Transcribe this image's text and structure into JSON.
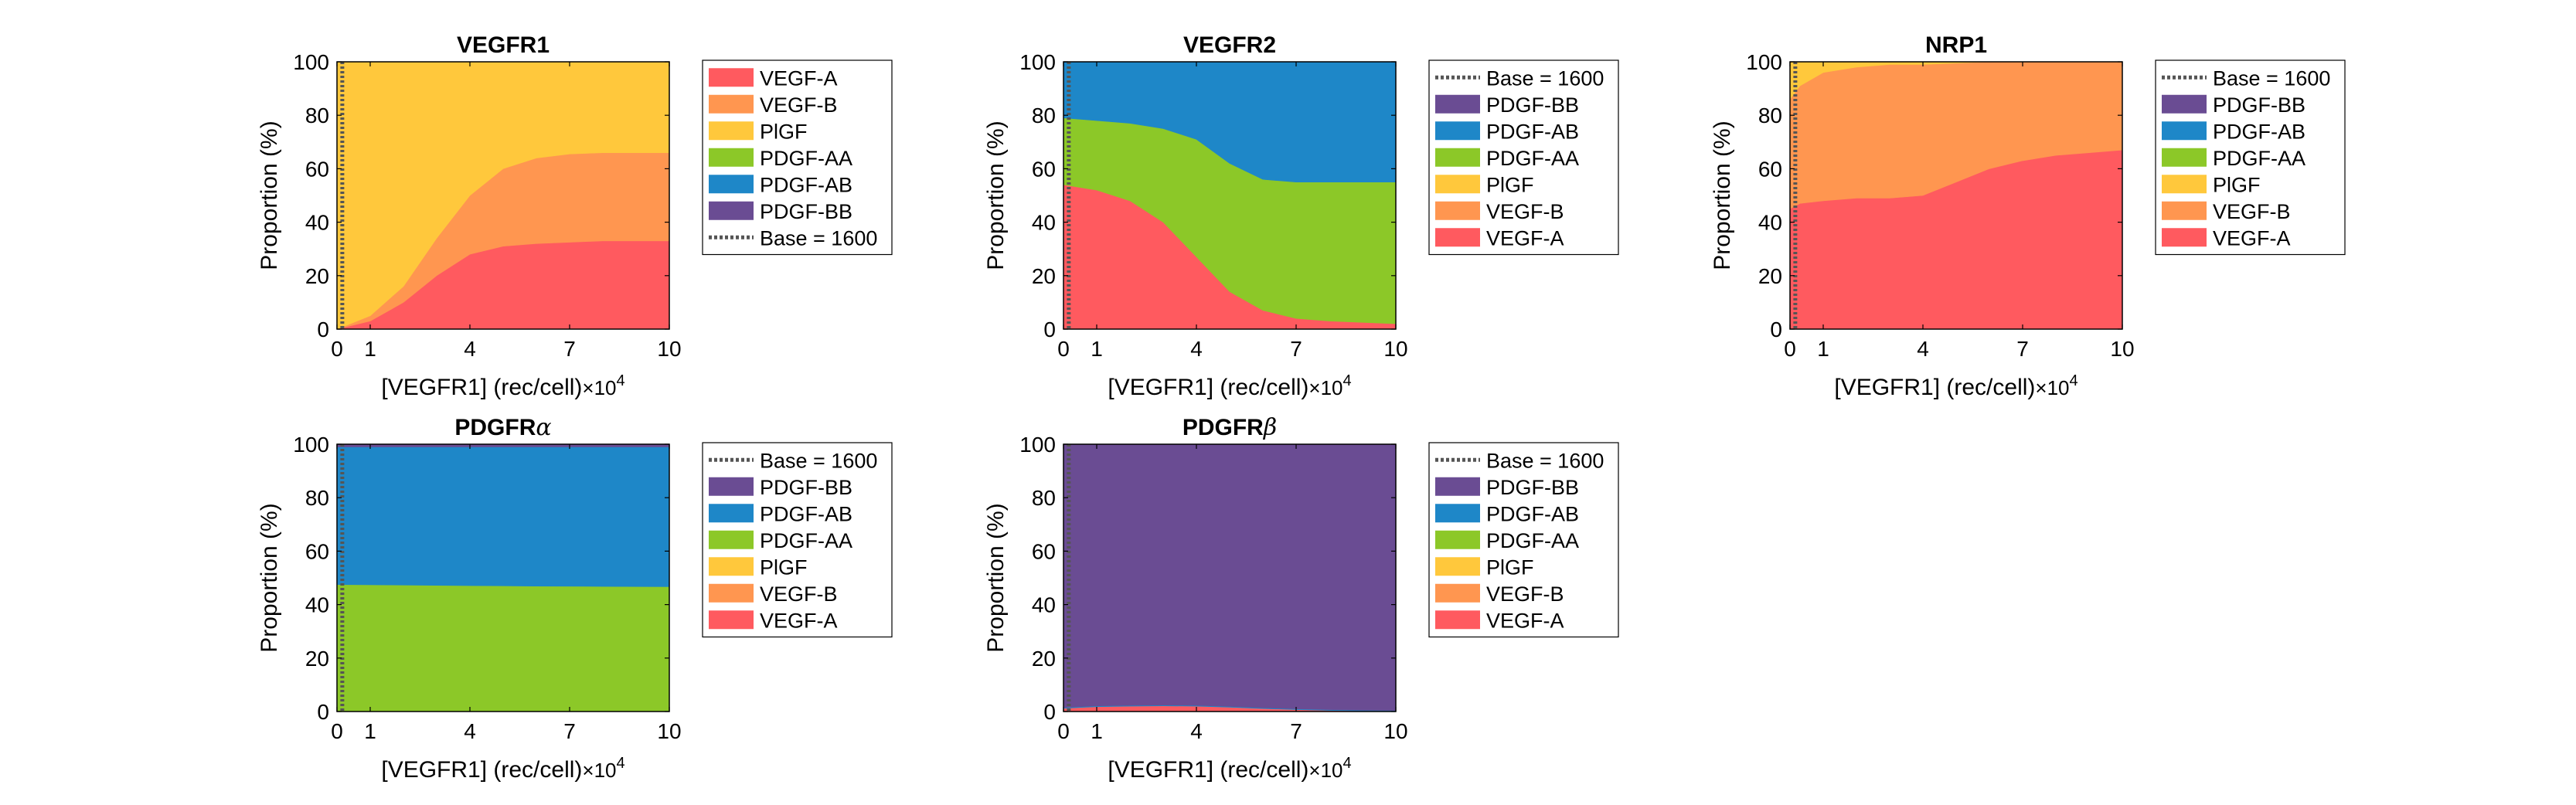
{
  "colors": {
    "VEGF-A": "#FF5A5F",
    "VEGF-B": "#FF9650",
    "PlGF": "#FFC83C",
    "PDGF-AA": "#8CC828",
    "PDGF-AB": "#1E87C8",
    "PDGF-BB": "#6A4C93",
    "base_line": "#555555"
  },
  "chart_data": [
    {
      "type": "area",
      "stacked": true,
      "title": "VEGFR1",
      "xlabel": "[VEGFR1] (rec/cell)",
      "xlabel_multiplier": "×10",
      "xlabel_exponent": "4",
      "ylabel": "Proportion (%)",
      "xlim": [
        0,
        10
      ],
      "ylim": [
        0,
        100
      ],
      "xticks": [
        0,
        1,
        4,
        7,
        10
      ],
      "yticks": [
        0,
        20,
        40,
        60,
        80,
        100
      ],
      "base_x": 0.16,
      "x": [
        0,
        1,
        2,
        3,
        4,
        5,
        6,
        7,
        8,
        9,
        10
      ],
      "series": [
        {
          "name": "VEGF-A",
          "values": [
            0,
            3,
            10,
            20,
            28,
            31,
            32,
            32.5,
            33,
            33,
            33
          ]
        },
        {
          "name": "VEGF-B",
          "values": [
            0,
            2,
            6,
            14,
            22,
            29,
            32,
            33,
            33,
            33,
            33
          ]
        },
        {
          "name": "PlGF",
          "values": [
            100,
            95,
            84,
            66,
            50,
            40,
            36,
            34.5,
            34,
            34,
            34
          ]
        },
        {
          "name": "PDGF-AA",
          "values": [
            0,
            0,
            0,
            0,
            0,
            0,
            0,
            0,
            0,
            0,
            0
          ]
        },
        {
          "name": "PDGF-AB",
          "values": [
            0,
            0,
            0,
            0,
            0,
            0,
            0,
            0,
            0,
            0,
            0
          ]
        },
        {
          "name": "PDGF-BB",
          "values": [
            0,
            0,
            0,
            0,
            0,
            0,
            0,
            0,
            0,
            0,
            0
          ]
        }
      ],
      "legend_order": [
        "VEGF-A",
        "VEGF-B",
        "PlGF",
        "PDGF-AA",
        "PDGF-AB",
        "PDGF-BB",
        "base"
      ],
      "legend_base_label": "Base = 1600"
    },
    {
      "type": "area",
      "stacked": true,
      "title": "VEGFR2",
      "xlabel": "[VEGFR1] (rec/cell)",
      "xlabel_multiplier": "×10",
      "xlabel_exponent": "4",
      "ylabel": "Proportion (%)",
      "xlim": [
        0,
        10
      ],
      "ylim": [
        0,
        100
      ],
      "xticks": [
        0,
        1,
        4,
        7,
        10
      ],
      "yticks": [
        0,
        20,
        40,
        60,
        80,
        100
      ],
      "base_x": 0.16,
      "x": [
        0,
        1,
        2,
        3,
        4,
        5,
        6,
        7,
        8,
        9,
        10
      ],
      "series": [
        {
          "name": "VEGF-A",
          "values": [
            54,
            52,
            48,
            40,
            27,
            14,
            7,
            4,
            3,
            2.5,
            2
          ]
        },
        {
          "name": "VEGF-B",
          "values": [
            0,
            0,
            0,
            0,
            0,
            0,
            0,
            0,
            0,
            0,
            0
          ]
        },
        {
          "name": "PlGF",
          "values": [
            0,
            0,
            0,
            0,
            0,
            0,
            0,
            0,
            0,
            0,
            0
          ]
        },
        {
          "name": "PDGF-AA",
          "values": [
            25,
            26,
            29,
            35,
            44,
            48,
            49,
            51,
            52,
            52.5,
            53
          ]
        },
        {
          "name": "PDGF-AB",
          "values": [
            21,
            22,
            23,
            25,
            29,
            38,
            44,
            45,
            45,
            45,
            45
          ]
        },
        {
          "name": "PDGF-BB",
          "values": [
            0,
            0,
            0,
            0,
            0,
            0,
            0,
            0,
            0,
            0,
            0
          ]
        }
      ],
      "legend_order": [
        "base",
        "PDGF-BB",
        "PDGF-AB",
        "PDGF-AA",
        "PlGF",
        "VEGF-B",
        "VEGF-A"
      ],
      "legend_base_label": "Base = 1600"
    },
    {
      "type": "area",
      "stacked": true,
      "title": "NRP1",
      "xlabel": "[VEGFR1] (rec/cell)",
      "xlabel_multiplier": "×10",
      "xlabel_exponent": "4",
      "ylabel": "Proportion (%)",
      "xlim": [
        0,
        10
      ],
      "ylim": [
        0,
        100
      ],
      "xticks": [
        0,
        1,
        4,
        7,
        10
      ],
      "yticks": [
        0,
        20,
        40,
        60,
        80,
        100
      ],
      "base_x": 0.16,
      "x": [
        0,
        0.3,
        1,
        2,
        3,
        4,
        5,
        6,
        7,
        8,
        9,
        10
      ],
      "series": [
        {
          "name": "VEGF-A",
          "values": [
            45,
            47,
            48,
            49,
            49,
            50,
            55,
            60,
            63,
            65,
            66,
            67
          ]
        },
        {
          "name": "VEGF-B",
          "values": [
            41,
            44,
            48,
            49,
            50,
            49,
            44.5,
            40,
            37,
            35,
            34,
            33
          ]
        },
        {
          "name": "PlGF",
          "values": [
            14,
            9,
            4,
            2,
            1,
            1,
            0.5,
            0,
            0,
            0,
            0,
            0
          ]
        },
        {
          "name": "PDGF-AA",
          "values": [
            0,
            0,
            0,
            0,
            0,
            0,
            0,
            0,
            0,
            0,
            0,
            0
          ]
        },
        {
          "name": "PDGF-AB",
          "values": [
            0,
            0,
            0,
            0,
            0,
            0,
            0,
            0,
            0,
            0,
            0,
            0
          ]
        },
        {
          "name": "PDGF-BB",
          "values": [
            0,
            0,
            0,
            0,
            0,
            0,
            0,
            0,
            0,
            0,
            0,
            0
          ]
        }
      ],
      "legend_order": [
        "base",
        "PDGF-BB",
        "PDGF-AB",
        "PDGF-AA",
        "PlGF",
        "VEGF-B",
        "VEGF-A"
      ],
      "legend_base_label": "Base = 1600"
    },
    {
      "type": "area",
      "stacked": true,
      "title": "PDGFR",
      "title_symbol": "α",
      "xlabel": "[VEGFR1] (rec/cell)",
      "xlabel_multiplier": "×10",
      "xlabel_exponent": "4",
      "ylabel": "Proportion (%)",
      "xlim": [
        0,
        10
      ],
      "ylim": [
        0,
        100
      ],
      "xticks": [
        0,
        1,
        4,
        7,
        10
      ],
      "yticks": [
        0,
        20,
        40,
        60,
        80,
        100
      ],
      "base_x": 0.16,
      "x": [
        0,
        2,
        4,
        6,
        8,
        10
      ],
      "series": [
        {
          "name": "VEGF-A",
          "values": [
            0,
            0,
            0,
            0,
            0,
            0
          ]
        },
        {
          "name": "VEGF-B",
          "values": [
            0,
            0,
            0,
            0,
            0,
            0
          ]
        },
        {
          "name": "PlGF",
          "values": [
            0,
            0,
            0,
            0,
            0,
            0
          ]
        },
        {
          "name": "PDGF-AA",
          "values": [
            47.5,
            47.3,
            47.1,
            46.9,
            46.8,
            46.7
          ]
        },
        {
          "name": "PDGF-AB",
          "values": [
            51.5,
            51.7,
            51.9,
            52.1,
            52.2,
            52.3
          ]
        },
        {
          "name": "PDGF-BB",
          "values": [
            1,
            1,
            1,
            1,
            1,
            1
          ]
        }
      ],
      "legend_order": [
        "base",
        "PDGF-BB",
        "PDGF-AB",
        "PDGF-AA",
        "PlGF",
        "VEGF-B",
        "VEGF-A"
      ],
      "legend_base_label": "Base = 1600"
    },
    {
      "type": "area",
      "stacked": true,
      "title": "PDGFR",
      "title_symbol": "β",
      "xlabel": "[VEGFR1] (rec/cell)",
      "xlabel_multiplier": "×10",
      "xlabel_exponent": "4",
      "ylabel": "Proportion (%)",
      "xlim": [
        0,
        10
      ],
      "ylim": [
        0,
        100
      ],
      "xticks": [
        0,
        1,
        4,
        7,
        10
      ],
      "yticks": [
        0,
        20,
        40,
        60,
        80,
        100
      ],
      "base_x": 0.16,
      "x": [
        0,
        1,
        2,
        3,
        4,
        5,
        6,
        7,
        8,
        9,
        10
      ],
      "series": [
        {
          "name": "VEGF-A",
          "values": [
            1.2,
            1.8,
            2,
            2.1,
            2,
            1.6,
            1.1,
            0.7,
            0.4,
            0.2,
            0.1
          ]
        },
        {
          "name": "VEGF-B",
          "values": [
            0,
            0,
            0,
            0,
            0,
            0,
            0,
            0,
            0,
            0,
            0
          ]
        },
        {
          "name": "PlGF",
          "values": [
            0,
            0,
            0,
            0,
            0,
            0,
            0,
            0,
            0,
            0,
            0
          ]
        },
        {
          "name": "PDGF-AA",
          "values": [
            0,
            0,
            0,
            0,
            0,
            0,
            0,
            0,
            0,
            0,
            0
          ]
        },
        {
          "name": "PDGF-AB",
          "values": [
            0.3,
            0.3,
            0.3,
            0.3,
            0.3,
            0.3,
            0.3,
            0.3,
            0.3,
            0.3,
            0.3
          ]
        },
        {
          "name": "PDGF-BB",
          "values": [
            98.5,
            97.9,
            97.7,
            97.6,
            97.7,
            98.1,
            98.6,
            99,
            99.3,
            99.5,
            99.6
          ]
        }
      ],
      "legend_order": [
        "base",
        "PDGF-BB",
        "PDGF-AB",
        "PDGF-AA",
        "PlGF",
        "VEGF-B",
        "VEGF-A"
      ],
      "legend_base_label": "Base = 1600"
    }
  ]
}
